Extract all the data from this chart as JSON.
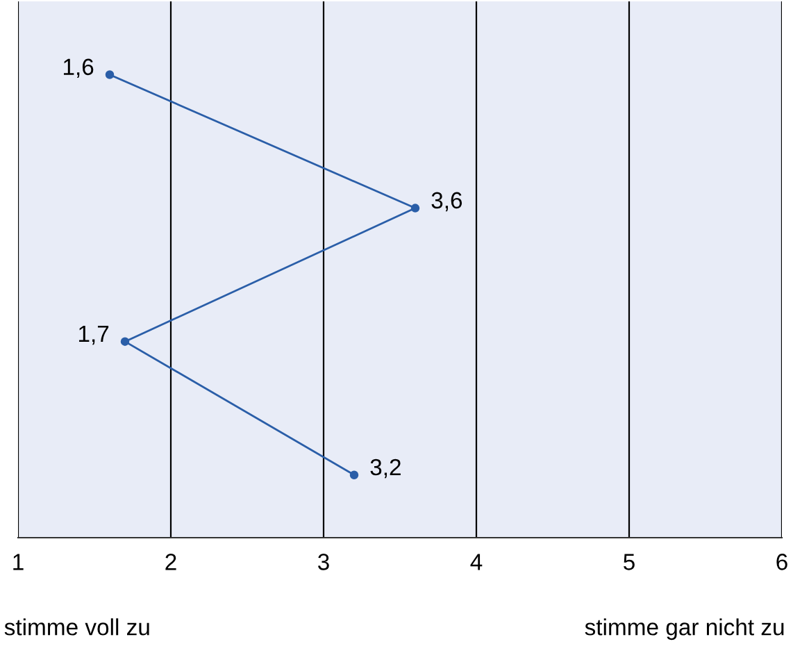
{
  "chart_data": {
    "type": "line",
    "orientation": "horizontal",
    "categories": [
      null,
      null,
      null,
      null
    ],
    "values": [
      1.6,
      3.6,
      1.7,
      3.2
    ],
    "value_labels": [
      "1,6",
      "3,6",
      "1,7",
      "3,2"
    ],
    "color": "#2a5ea8",
    "marker": "circle",
    "line_style": "solid",
    "grid": "x",
    "xlim": [
      1,
      6
    ],
    "xticks": [
      1,
      2,
      3,
      4,
      5,
      6
    ],
    "annotations": [
      "stimme voll zu",
      "stimme gar nicht zu"
    ]
  }
}
